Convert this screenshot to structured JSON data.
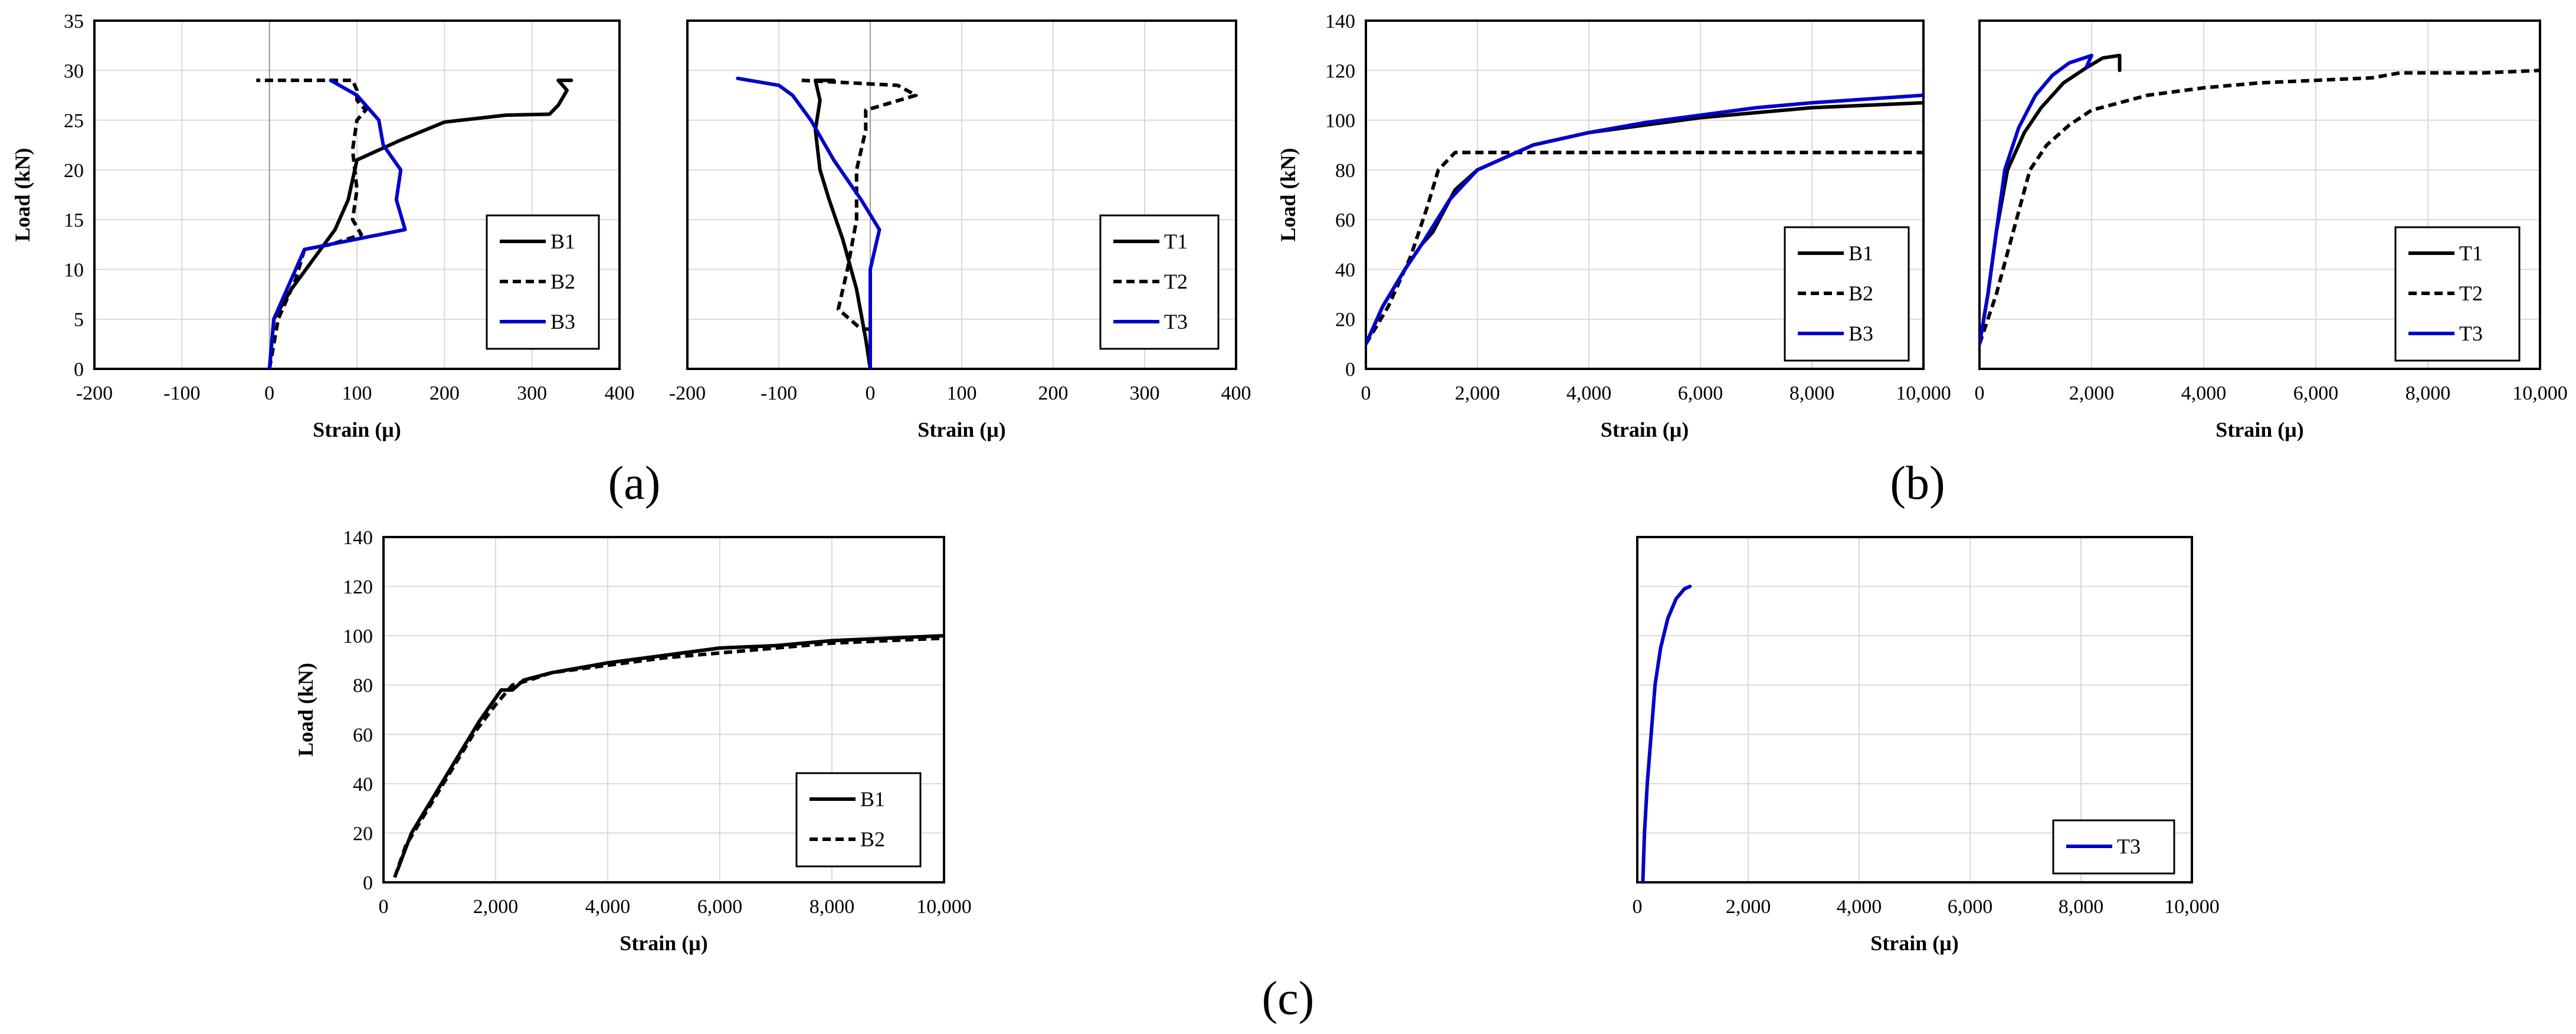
{
  "colors": {
    "black": "#000000",
    "blue": "#0000cc",
    "grid": "#d9d9d9"
  },
  "chart_data": [
    {
      "id": "a1",
      "type": "line",
      "xlabel": "Strain (μ)",
      "ylabel": "Load (kN)",
      "xlim": [
        -200,
        400
      ],
      "ylim": [
        0,
        35
      ],
      "xticks": [
        "-200",
        "-100",
        "0",
        "100",
        "200",
        "300",
        "400"
      ],
      "yticks": [
        "0",
        "5",
        "10",
        "15",
        "20",
        "25",
        "30",
        "35"
      ],
      "legend": "middle-right",
      "series": [
        {
          "name": "B1",
          "color": "#000000",
          "dash": false,
          "points": [
            [
              0,
              0
            ],
            [
              5,
              5
            ],
            [
              25,
              8
            ],
            [
              50,
              11
            ],
            [
              75,
              14
            ],
            [
              90,
              17
            ],
            [
              100,
              21
            ],
            [
              150,
              23
            ],
            [
              200,
              24.8
            ],
            [
              270,
              25.5
            ],
            [
              320,
              25.6
            ],
            [
              330,
              26.5
            ],
            [
              340,
              28
            ],
            [
              330,
              29
            ],
            [
              345,
              29
            ]
          ]
        },
        {
          "name": "B2",
          "color": "#000000",
          "dash": true,
          "points": [
            [
              0,
              0
            ],
            [
              10,
              5
            ],
            [
              30,
              9
            ],
            [
              40,
              12
            ],
            [
              70,
              12.5
            ],
            [
              105,
              13.5
            ],
            [
              95,
              15
            ],
            [
              100,
              18
            ],
            [
              95,
              22
            ],
            [
              100,
              25
            ],
            [
              110,
              26
            ],
            [
              100,
              27
            ],
            [
              100,
              28
            ],
            [
              95,
              29
            ],
            [
              -15,
              29
            ]
          ]
        },
        {
          "name": "B3",
          "color": "#0000cc",
          "dash": false,
          "points": [
            [
              0,
              0
            ],
            [
              5,
              5
            ],
            [
              20,
              8
            ],
            [
              40,
              12
            ],
            [
              155,
              14
            ],
            [
              145,
              17
            ],
            [
              150,
              20
            ],
            [
              130,
              22.5
            ],
            [
              125,
              25
            ],
            [
              100,
              27.5
            ],
            [
              70,
              29
            ]
          ]
        }
      ]
    },
    {
      "id": "a2",
      "type": "line",
      "xlabel": "Strain (μ)",
      "ylabel": "",
      "xlim": [
        -200,
        400
      ],
      "ylim": [
        0,
        35
      ],
      "xticks": [
        "-200",
        "-100",
        "0",
        "100",
        "200",
        "300",
        "400"
      ],
      "yticks": [],
      "legend": "middle-right",
      "series": [
        {
          "name": "T1",
          "color": "#000000",
          "dash": false,
          "points": [
            [
              0,
              0
            ],
            [
              -5,
              3
            ],
            [
              -15,
              8
            ],
            [
              -30,
              13
            ],
            [
              -45,
              17
            ],
            [
              -55,
              20
            ],
            [
              -60,
              24
            ],
            [
              -55,
              27
            ],
            [
              -60,
              29
            ],
            [
              -40,
              29
            ]
          ]
        },
        {
          "name": "T2",
          "color": "#000000",
          "dash": true,
          "points": [
            [
              0,
              4
            ],
            [
              -10,
              4
            ],
            [
              -35,
              6
            ],
            [
              -25,
              10
            ],
            [
              -15,
              15
            ],
            [
              -15,
              20
            ],
            [
              -5,
              24
            ],
            [
              -5,
              26
            ],
            [
              50,
              27.5
            ],
            [
              30,
              28.5
            ],
            [
              -75,
              29
            ]
          ]
        },
        {
          "name": "T3",
          "color": "#0000cc",
          "dash": false,
          "points": [
            [
              0,
              0
            ],
            [
              0,
              10
            ],
            [
              10,
              14
            ],
            [
              -10,
              17
            ],
            [
              -40,
              21
            ],
            [
              -65,
              25
            ],
            [
              -85,
              27.5
            ],
            [
              -100,
              28.5
            ],
            [
              -145,
              29.2
            ]
          ]
        }
      ]
    },
    {
      "id": "b1",
      "type": "line",
      "xlabel": "Strain (μ)",
      "ylabel": "Load (kN)",
      "xlim": [
        0,
        10000
      ],
      "ylim": [
        0,
        140
      ],
      "xticks": [
        "0",
        "2,000",
        "4,000",
        "6,000",
        "8,000",
        "10,000"
      ],
      "yticks": [
        "0",
        "20",
        "40",
        "60",
        "80",
        "100",
        "120",
        "140"
      ],
      "legend": "bottom-right",
      "series": [
        {
          "name": "B1",
          "color": "#000000",
          "dash": false,
          "points": [
            [
              0,
              10
            ],
            [
              300,
              25
            ],
            [
              700,
              40
            ],
            [
              1000,
              50
            ],
            [
              1200,
              55
            ],
            [
              1600,
              72
            ],
            [
              2000,
              80
            ],
            [
              3000,
              90
            ],
            [
              4000,
              95
            ],
            [
              5000,
              98
            ],
            [
              6000,
              101
            ],
            [
              7000,
              103
            ],
            [
              8000,
              105
            ],
            [
              9000,
              106
            ],
            [
              10000,
              107
            ]
          ]
        },
        {
          "name": "B2",
          "color": "#000000",
          "dash": true,
          "points": [
            [
              0,
              10
            ],
            [
              400,
              25
            ],
            [
              800,
              45
            ],
            [
              1100,
              65
            ],
            [
              1300,
              80
            ],
            [
              1600,
              87
            ],
            [
              2500,
              87
            ],
            [
              10000,
              87
            ]
          ]
        },
        {
          "name": "B3",
          "color": "#0000cc",
          "dash": false,
          "points": [
            [
              0,
              10
            ],
            [
              300,
              25
            ],
            [
              700,
              40
            ],
            [
              1000,
              50
            ],
            [
              1500,
              68
            ],
            [
              2000,
              80
            ],
            [
              3000,
              90
            ],
            [
              4000,
              95
            ],
            [
              5000,
              99
            ],
            [
              6000,
              102
            ],
            [
              7000,
              105
            ],
            [
              8000,
              107
            ],
            [
              9000,
              108.5
            ],
            [
              10000,
              110
            ]
          ]
        }
      ]
    },
    {
      "id": "b2",
      "type": "line",
      "xlabel": "Strain (μ)",
      "ylabel": "",
      "xlim": [
        0,
        10000
      ],
      "ylim": [
        0,
        140
      ],
      "xticks": [
        "0",
        "2,000",
        "4,000",
        "6,000",
        "8,000",
        "10,000"
      ],
      "yticks": [],
      "legend": "bottom-right",
      "series": [
        {
          "name": "T1",
          "color": "#000000",
          "dash": false,
          "points": [
            [
              0,
              10
            ],
            [
              150,
              30
            ],
            [
              300,
              55
            ],
            [
              500,
              80
            ],
            [
              800,
              95
            ],
            [
              1100,
              105
            ],
            [
              1500,
              115
            ],
            [
              1900,
              121
            ],
            [
              2200,
              125
            ],
            [
              2500,
              126
            ],
            [
              2500,
              120
            ]
          ]
        },
        {
          "name": "T2",
          "color": "#000000",
          "dash": true,
          "points": [
            [
              0,
              10
            ],
            [
              300,
              30
            ],
            [
              600,
              55
            ],
            [
              900,
              80
            ],
            [
              1200,
              90
            ],
            [
              1600,
              98
            ],
            [
              2000,
              104
            ],
            [
              3000,
              110
            ],
            [
              4000,
              113
            ],
            [
              5000,
              115
            ],
            [
              6000,
              116
            ],
            [
              7000,
              117
            ],
            [
              7500,
              119
            ],
            [
              8500,
              119
            ],
            [
              9000,
              119
            ],
            [
              10000,
              120
            ]
          ]
        },
        {
          "name": "T3",
          "color": "#0000cc",
          "dash": false,
          "points": [
            [
              0,
              10
            ],
            [
              150,
              30
            ],
            [
              300,
              55
            ],
            [
              450,
              80
            ],
            [
              700,
              97
            ],
            [
              1000,
              110
            ],
            [
              1300,
              118
            ],
            [
              1600,
              123
            ],
            [
              2000,
              126
            ],
            [
              1900,
              121
            ]
          ]
        }
      ]
    },
    {
      "id": "c1",
      "type": "line",
      "xlabel": "Strain (μ)",
      "ylabel": "Load (kN)",
      "xlim": [
        0,
        10000
      ],
      "ylim": [
        0,
        140
      ],
      "xticks": [
        "0",
        "2,000",
        "4,000",
        "6,000",
        "8,000",
        "10,000"
      ],
      "yticks": [
        "0",
        "20",
        "40",
        "60",
        "80",
        "100",
        "120",
        "140"
      ],
      "legend": "bottom-right",
      "series": [
        {
          "name": "B1",
          "color": "#000000",
          "dash": false,
          "points": [
            [
              250,
              5
            ],
            [
              500,
              20
            ],
            [
              900,
              35
            ],
            [
              1300,
              50
            ],
            [
              1700,
              65
            ],
            [
              2100,
              78
            ],
            [
              2300,
              78
            ],
            [
              2500,
              82
            ],
            [
              3000,
              85
            ],
            [
              4000,
              89
            ],
            [
              5000,
              92
            ],
            [
              6000,
              95
            ],
            [
              7000,
              96
            ],
            [
              8000,
              98
            ],
            [
              9000,
              99
            ],
            [
              10000,
              100
            ]
          ]
        },
        {
          "name": "B2",
          "color": "#000000",
          "dash": true,
          "points": [
            [
              200,
              2
            ],
            [
              400,
              15
            ],
            [
              800,
              30
            ],
            [
              1200,
              45
            ],
            [
              1600,
              60
            ],
            [
              2000,
              72
            ],
            [
              2300,
              80
            ],
            [
              2600,
              82
            ],
            [
              3000,
              85
            ],
            [
              4000,
              88
            ],
            [
              5000,
              91
            ],
            [
              6000,
              93
            ],
            [
              7000,
              95
            ],
            [
              8000,
              97
            ],
            [
              9000,
              98
            ],
            [
              10000,
              99
            ]
          ]
        }
      ]
    },
    {
      "id": "c2",
      "type": "line",
      "xlabel": "Strain (μ)",
      "ylabel": "",
      "xlim": [
        0,
        10000
      ],
      "ylim": [
        0,
        140
      ],
      "xticks": [
        "0",
        "2,000",
        "4,000",
        "6,000",
        "8,000",
        "10,000"
      ],
      "yticks": [],
      "legend": "bottom-right",
      "series": [
        {
          "name": "T3",
          "color": "#0000cc",
          "dash": false,
          "points": [
            [
              100,
              0
            ],
            [
              130,
              20
            ],
            [
              180,
              40
            ],
            [
              250,
              60
            ],
            [
              320,
              80
            ],
            [
              420,
              95
            ],
            [
              550,
              107
            ],
            [
              700,
              115
            ],
            [
              850,
              119
            ],
            [
              950,
              120
            ]
          ]
        }
      ]
    }
  ],
  "captions": {
    "a": "(a)",
    "b": "(b)",
    "c": "(c)"
  }
}
